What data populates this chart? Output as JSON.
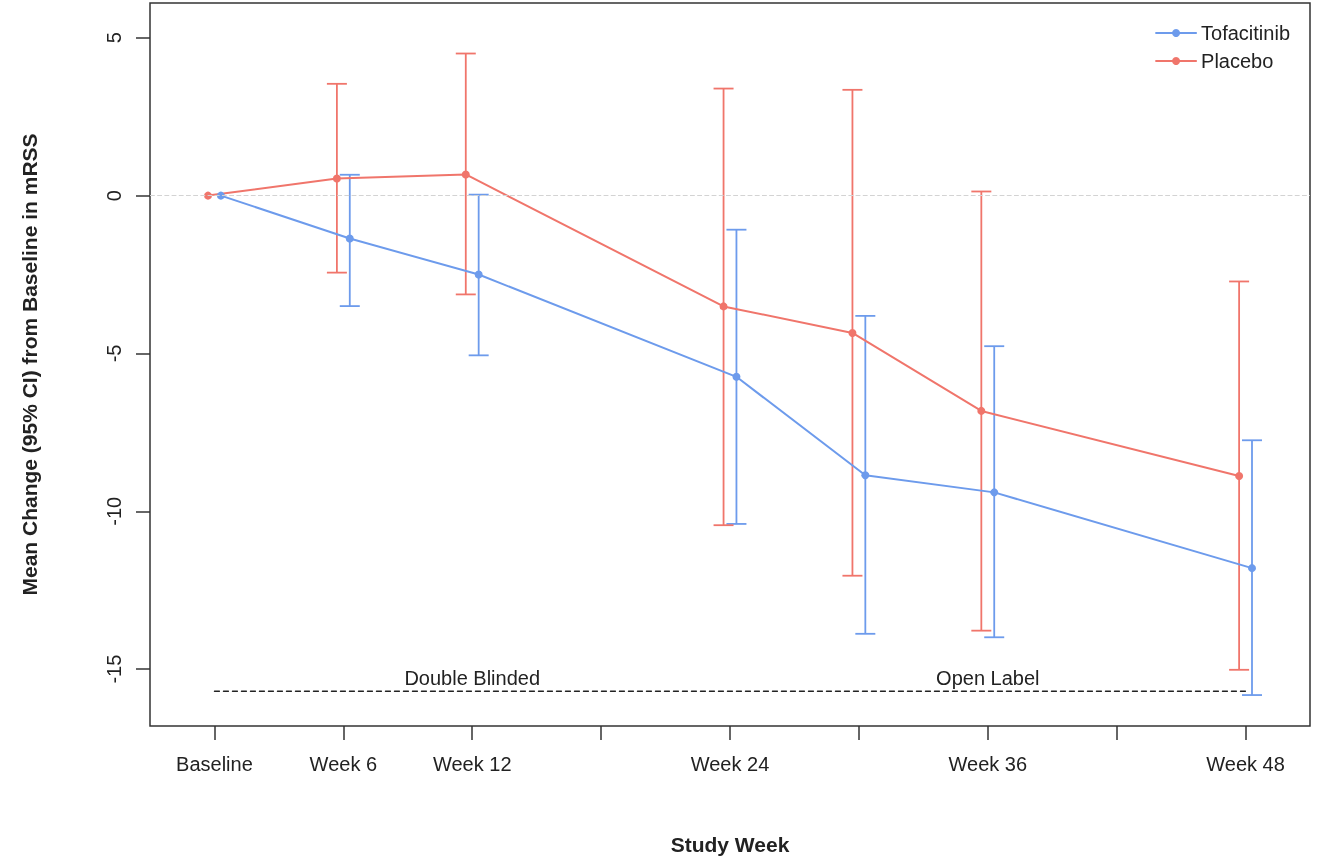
{
  "chart_data": {
    "type": "line",
    "xlabel": "Study Week",
    "ylabel": "Mean Change (95% CI) from Baseline in mRSS",
    "categories": [
      "Baseline",
      "Week 6",
      "Week 12",
      null,
      "Week 24",
      null,
      "Week 36",
      null,
      "Week 48"
    ],
    "ylim": [
      -16.8,
      6.1
    ],
    "yticks": [
      -15,
      -10,
      -5,
      0,
      5
    ],
    "series": [
      {
        "name": "Tofacitinib",
        "color": "#6d9bec",
        "values": [
          0,
          -1.36,
          -2.5,
          null,
          -5.74,
          -8.86,
          -9.4,
          null,
          -11.8
        ],
        "errors": [
          null,
          [
            -3.5,
            0.66
          ],
          [
            -5.06,
            0.03
          ],
          null,
          [
            -10.4,
            -1.08
          ],
          [
            -13.88,
            -3.81
          ],
          [
            -13.99,
            -4.77
          ],
          null,
          [
            -15.82,
            -7.75
          ]
        ]
      },
      {
        "name": "Placebo",
        "color": "#f0756b",
        "values": [
          0,
          0.54,
          0.67,
          null,
          -3.51,
          -4.35,
          -6.82,
          null,
          -8.88
        ],
        "errors": [
          null,
          [
            -2.44,
            3.54
          ],
          [
            -3.13,
            4.5
          ],
          null,
          [
            -10.44,
            3.39
          ],
          [
            -12.04,
            3.35
          ],
          [
            -13.78,
            0.13
          ],
          null,
          [
            -15.02,
            -2.72
          ]
        ]
      },
      {
        "color": "#222222",
        "marker": "none",
        "line_style": "dashed",
        "values": [
          -15.7,
          -15.7,
          -15.7,
          -15.7,
          -15.7,
          -15.7,
          -15.7,
          -15.7,
          -15.7
        ]
      }
    ],
    "ref_lines": [
      {
        "axis": "y",
        "value": 0,
        "color": "#d3d3d3",
        "line_style": "dashed"
      }
    ],
    "annotations": [
      {
        "text": "Double Blinded",
        "x": "Week 12",
        "y": -15.7
      },
      {
        "text": "Open Label",
        "x": "Week 36",
        "y": -15.7
      }
    ],
    "marker": "circle",
    "line_style": "solid",
    "grid": false,
    "legend": "top right"
  }
}
